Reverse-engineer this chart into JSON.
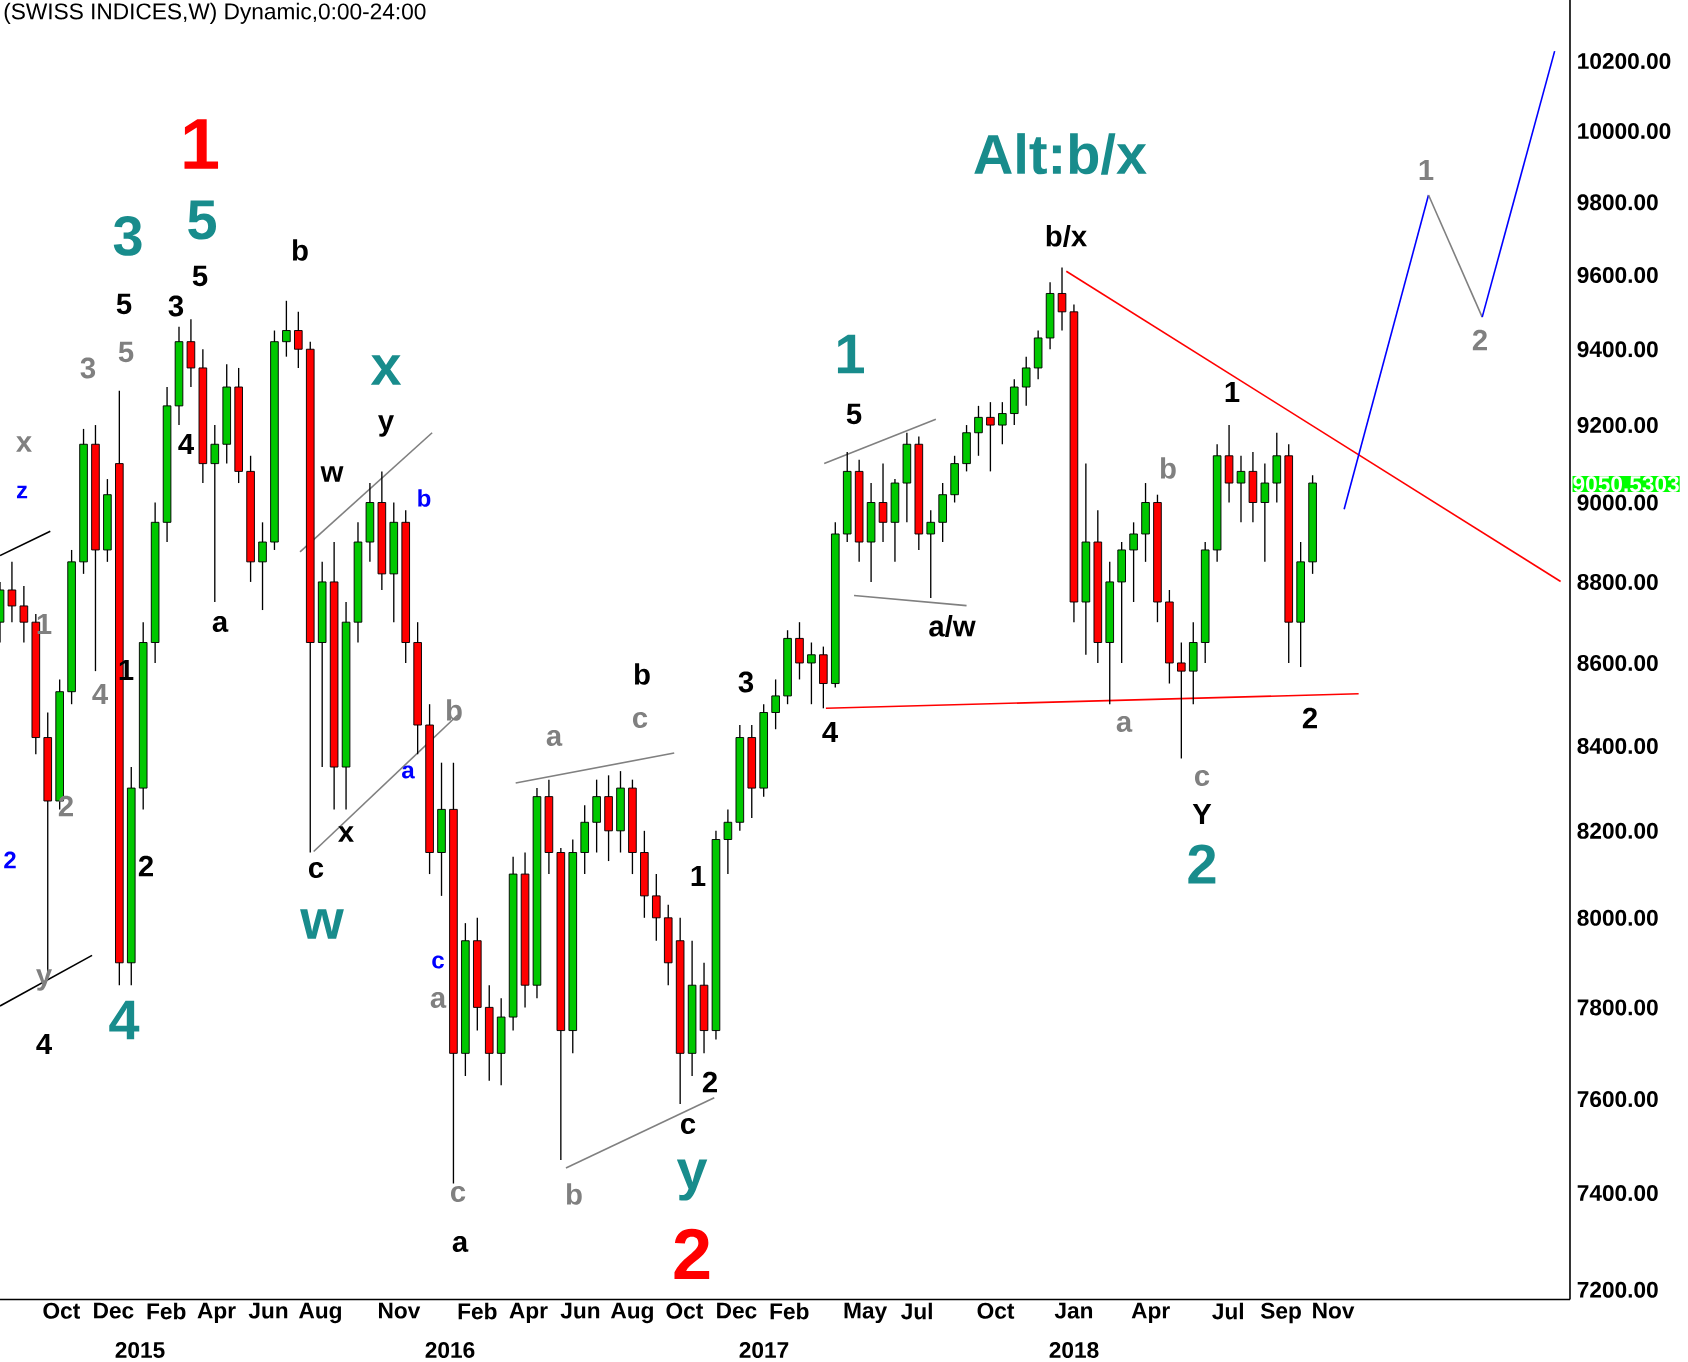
{
  "chart_data": {
    "type": "candlestick",
    "title": "(SWISS INDICES,W) Dynamic,0:00-24:00",
    "log": true,
    "xlim": [
      "2014-07-21",
      "2019-08-06"
    ],
    "ylim": [
      7180,
      10380
    ],
    "xticks": [
      {
        "value": "2014-10",
        "label": "Oct"
      },
      {
        "value": "2014-12",
        "label": "Dec"
      },
      {
        "value": "2015-02",
        "label": "Feb"
      },
      {
        "value": "2015-04",
        "label": "Apr"
      },
      {
        "value": "2015-06",
        "label": "Jun"
      },
      {
        "value": "2015-08",
        "label": "Aug"
      },
      {
        "value": "2015-11",
        "label": "Nov"
      },
      {
        "value": "2016-02",
        "label": "Feb"
      },
      {
        "value": "2016-04",
        "label": "Apr"
      },
      {
        "value": "2016-06",
        "label": "Jun"
      },
      {
        "value": "2016-08",
        "label": "Aug"
      },
      {
        "value": "2016-10",
        "label": "Oct"
      },
      {
        "value": "2016-12",
        "label": "Dec"
      },
      {
        "value": "2017-02",
        "label": "Feb"
      },
      {
        "value": "2017-05",
        "label": "May"
      },
      {
        "value": "2017-07",
        "label": "Jul"
      },
      {
        "value": "2017-10",
        "label": "Oct"
      },
      {
        "value": "2018-01",
        "label": "Jan"
      },
      {
        "value": "2018-04",
        "label": "Apr"
      },
      {
        "value": "2018-07",
        "label": "Jul"
      },
      {
        "value": "2018-09",
        "label": "Sep"
      },
      {
        "value": "2018-11",
        "label": "Nov"
      }
    ],
    "yticks": [
      {
        "value": 7200,
        "label": "7200.00"
      },
      {
        "value": 7400,
        "label": "7400.00"
      },
      {
        "value": 7600,
        "label": "7600.00"
      },
      {
        "value": 7800,
        "label": "7800.00"
      },
      {
        "value": 8000,
        "label": "8000.00"
      },
      {
        "value": 8200,
        "label": "8200.00"
      },
      {
        "value": 8400,
        "label": "8400.00"
      },
      {
        "value": 8600,
        "label": "8600.00"
      },
      {
        "value": 8800,
        "label": "8800.00"
      },
      {
        "value": 9000,
        "label": "9000.00"
      },
      {
        "value": 9200,
        "label": "9200.00"
      },
      {
        "value": 9400,
        "label": "9400.00"
      },
      {
        "value": 9600,
        "label": "9600.00"
      },
      {
        "value": 9800,
        "label": "9800.00"
      },
      {
        "value": 10000,
        "label": "10000.00"
      },
      {
        "value": 10200,
        "label": "10200.00"
      }
    ],
    "x": [
      "2014-07-21",
      "2014-08-04",
      "2014-08-18",
      "2014-09-01",
      "2014-09-15",
      "2014-09-29",
      "2014-10-13",
      "2014-10-27",
      "2014-11-10",
      "2014-11-24",
      "2014-12-08",
      "2014-12-22",
      "2015-01-05",
      "2015-01-19",
      "2015-02-02",
      "2015-02-16",
      "2015-03-02",
      "2015-03-16",
      "2015-03-30",
      "2015-04-13",
      "2015-04-27",
      "2015-05-11",
      "2015-05-25",
      "2015-06-08",
      "2015-06-22",
      "2015-07-06",
      "2015-07-20",
      "2015-08-03",
      "2015-08-17",
      "2015-08-31",
      "2015-09-14",
      "2015-09-28",
      "2015-10-12",
      "2015-10-26",
      "2015-11-09",
      "2015-11-23",
      "2015-12-07",
      "2015-12-21",
      "2016-01-04",
      "2016-01-18",
      "2016-02-01",
      "2016-02-15",
      "2016-02-29",
      "2016-03-14",
      "2016-03-28",
      "2016-04-11",
      "2016-04-25",
      "2016-05-09",
      "2016-05-23",
      "2016-06-06",
      "2016-06-20",
      "2016-07-04",
      "2016-07-18",
      "2016-08-01",
      "2016-08-15",
      "2016-08-29",
      "2016-09-12",
      "2016-09-26",
      "2016-10-10",
      "2016-10-24",
      "2016-11-07",
      "2016-11-21",
      "2016-12-05",
      "2016-12-19",
      "2017-01-02",
      "2017-01-16",
      "2017-01-30",
      "2017-02-13",
      "2017-02-27",
      "2017-03-13",
      "2017-03-27",
      "2017-04-10",
      "2017-04-24",
      "2017-05-08",
      "2017-05-22",
      "2017-06-05",
      "2017-06-19",
      "2017-07-03",
      "2017-07-17",
      "2017-07-31",
      "2017-08-14",
      "2017-08-28",
      "2017-09-11",
      "2017-09-25",
      "2017-10-09",
      "2017-10-23",
      "2017-11-06",
      "2017-11-20",
      "2017-12-04",
      "2017-12-18",
      "2018-01-01",
      "2018-01-15",
      "2018-01-29",
      "2018-02-12",
      "2018-02-26",
      "2018-03-12",
      "2018-03-26",
      "2018-04-09",
      "2018-04-23",
      "2018-05-07",
      "2018-05-21",
      "2018-06-04",
      "2018-06-18",
      "2018-07-02",
      "2018-07-16",
      "2018-07-30",
      "2018-08-13",
      "2018-08-27",
      "2018-09-10",
      "2018-09-24",
      "2018-10-08"
    ],
    "ohlc": [
      [
        8700,
        8800,
        8650,
        8780
      ],
      [
        8780,
        8850,
        8700,
        8740
      ],
      [
        8740,
        8790,
        8650,
        8700
      ],
      [
        8700,
        8720,
        8380,
        8420
      ],
      [
        8420,
        8480,
        7870,
        8270
      ],
      [
        8270,
        8560,
        8250,
        8530
      ],
      [
        8530,
        8880,
        8500,
        8850
      ],
      [
        8850,
        9190,
        8820,
        9150
      ],
      [
        9150,
        9200,
        8580,
        8880
      ],
      [
        8880,
        9060,
        8850,
        9020
      ],
      [
        9100,
        9290,
        7850,
        7900
      ],
      [
        7900,
        8350,
        7850,
        8300
      ],
      [
        8300,
        8700,
        8250,
        8650
      ],
      [
        8650,
        9000,
        8600,
        8950
      ],
      [
        8950,
        9300,
        8900,
        9250
      ],
      [
        9250,
        9460,
        9200,
        9420
      ],
      [
        9420,
        9480,
        9300,
        9350
      ],
      [
        9350,
        9400,
        9050,
        9100
      ],
      [
        9100,
        9200,
        8750,
        9150
      ],
      [
        9150,
        9360,
        9100,
        9300
      ],
      [
        9300,
        9350,
        9050,
        9080
      ],
      [
        9080,
        9120,
        8800,
        8850
      ],
      [
        8850,
        8950,
        8730,
        8900
      ],
      [
        8900,
        9450,
        8880,
        9420
      ],
      [
        9420,
        9530,
        9380,
        9450
      ],
      [
        9450,
        9500,
        9350,
        9400
      ],
      [
        9400,
        9420,
        8150,
        8650
      ],
      [
        8650,
        8850,
        8350,
        8800
      ],
      [
        8800,
        8900,
        8250,
        8350
      ],
      [
        8350,
        8750,
        8250,
        8700
      ],
      [
        8700,
        8950,
        8650,
        8900
      ],
      [
        8900,
        9050,
        8850,
        9000
      ],
      [
        9000,
        9080,
        8780,
        8820
      ],
      [
        8820,
        9000,
        8700,
        8950
      ],
      [
        8950,
        8980,
        8600,
        8650
      ],
      [
        8650,
        8700,
        8380,
        8450
      ],
      [
        8450,
        8500,
        8100,
        8150
      ],
      [
        8150,
        8360,
        8050,
        8250
      ],
      [
        8250,
        8360,
        7420,
        7700
      ],
      [
        7700,
        7990,
        7650,
        7950
      ],
      [
        7950,
        8000,
        7750,
        7800
      ],
      [
        7800,
        7850,
        7640,
        7700
      ],
      [
        7700,
        7820,
        7630,
        7780
      ],
      [
        7780,
        8140,
        7750,
        8100
      ],
      [
        8100,
        8150,
        7800,
        7850
      ],
      [
        7850,
        8300,
        7820,
        8280
      ],
      [
        8280,
        8320,
        8100,
        8150
      ],
      [
        8150,
        8160,
        7470,
        7750
      ],
      [
        7750,
        8180,
        7700,
        8150
      ],
      [
        8150,
        8260,
        8100,
        8220
      ],
      [
        8220,
        8320,
        8150,
        8280
      ],
      [
        8280,
        8330,
        8130,
        8200
      ],
      [
        8200,
        8340,
        8150,
        8300
      ],
      [
        8300,
        8320,
        8100,
        8150
      ],
      [
        8150,
        8200,
        8000,
        8050
      ],
      [
        8050,
        8100,
        7950,
        8000
      ],
      [
        8000,
        8030,
        7850,
        7900
      ],
      [
        7950,
        8000,
        7590,
        7700
      ],
      [
        7700,
        7950,
        7650,
        7850
      ],
      [
        7850,
        7900,
        7700,
        7750
      ],
      [
        7750,
        8200,
        7730,
        8180
      ],
      [
        8180,
        8250,
        8100,
        8220
      ],
      [
        8220,
        8450,
        8200,
        8420
      ],
      [
        8420,
        8450,
        8230,
        8300
      ],
      [
        8300,
        8500,
        8280,
        8480
      ],
      [
        8480,
        8560,
        8440,
        8520
      ],
      [
        8520,
        8680,
        8500,
        8660
      ],
      [
        8660,
        8700,
        8560,
        8600
      ],
      [
        8600,
        8650,
        8500,
        8620
      ],
      [
        8620,
        8640,
        8490,
        8550
      ],
      [
        8550,
        8950,
        8540,
        8920
      ],
      [
        8920,
        9130,
        8900,
        9080
      ],
      [
        9080,
        9110,
        8850,
        8900
      ],
      [
        8900,
        9050,
        8800,
        9000
      ],
      [
        9000,
        9100,
        8900,
        8950
      ],
      [
        8950,
        9060,
        8850,
        9050
      ],
      [
        9050,
        9180,
        8950,
        9150
      ],
      [
        9150,
        9170,
        8880,
        8920
      ],
      [
        8920,
        8980,
        8760,
        8950
      ],
      [
        8950,
        9050,
        8900,
        9020
      ],
      [
        9020,
        9120,
        9000,
        9100
      ],
      [
        9100,
        9200,
        9080,
        9180
      ],
      [
        9180,
        9250,
        9120,
        9220
      ],
      [
        9220,
        9260,
        9080,
        9200
      ],
      [
        9200,
        9260,
        9150,
        9230
      ],
      [
        9230,
        9320,
        9200,
        9300
      ],
      [
        9300,
        9380,
        9250,
        9350
      ],
      [
        9350,
        9450,
        9320,
        9430
      ],
      [
        9430,
        9580,
        9400,
        9550
      ],
      [
        9550,
        9620,
        9450,
        9500
      ],
      [
        9500,
        9520,
        8700,
        8750
      ],
      [
        8750,
        9100,
        8620,
        8900
      ],
      [
        8900,
        8980,
        8600,
        8650
      ],
      [
        8650,
        8850,
        8500,
        8800
      ],
      [
        8800,
        8900,
        8600,
        8880
      ],
      [
        8880,
        8950,
        8750,
        8920
      ],
      [
        8920,
        9050,
        8850,
        9000
      ],
      [
        9000,
        9020,
        8700,
        8750
      ],
      [
        8750,
        8780,
        8550,
        8600
      ],
      [
        8600,
        8650,
        8370,
        8580
      ],
      [
        8580,
        8700,
        8500,
        8650
      ],
      [
        8650,
        8900,
        8600,
        8880
      ],
      [
        8880,
        9150,
        8850,
        9120
      ],
      [
        9120,
        9200,
        9000,
        9050
      ],
      [
        9050,
        9120,
        8950,
        9080
      ],
      [
        9080,
        9130,
        8950,
        9000
      ],
      [
        9000,
        9100,
        8850,
        9050
      ],
      [
        9050,
        9180,
        9000,
        9120
      ],
      [
        9120,
        9150,
        8600,
        8700
      ],
      [
        8700,
        8900,
        8590,
        8850
      ],
      [
        8850,
        9070,
        8820,
        9050
      ]
    ],
    "series": [
      {
        "type": "line",
        "color": "#ff0000",
        "x": [
          "2017-12-23",
          "2019-07-26"
        ],
        "values": [
          9610,
          8801
        ]
      },
      {
        "type": "line",
        "color": "#ff0000",
        "x": [
          "2017-03-16",
          "2018-12-01"
        ],
        "values": [
          8490,
          8525
        ]
      },
      {
        "type": "line",
        "color": "#0000ff",
        "x": [
          "2018-11-14",
          "2019-02-21"
        ],
        "values": [
          8983,
          9820
        ]
      },
      {
        "type": "line",
        "color": "#808080",
        "x": [
          "2019-02-21",
          "2019-04-25"
        ],
        "values": [
          9820,
          9486
        ]
      },
      {
        "type": "line",
        "color": "#0000ff",
        "x": [
          "2019-04-25",
          "2019-07-19"
        ],
        "values": [
          9486,
          10229
        ]
      },
      {
        "type": "line",
        "color": "#000000",
        "x": [
          "2014-07-21",
          "2014-11-06"
        ],
        "values": [
          7804,
          7917
        ]
      },
      {
        "type": "line",
        "color": "#000000",
        "x": [
          "2014-07-21",
          "2014-09-18"
        ],
        "values": [
          8866,
          8927
        ]
      },
      {
        "type": "line",
        "color": "#808080",
        "x": [
          "2015-07-08",
          "2015-12-10"
        ],
        "values": [
          8875,
          9180
        ]
      },
      {
        "type": "line",
        "color": "#808080",
        "x": [
          "2015-07-24",
          "2016-01-09"
        ],
        "values": [
          8152,
          8474
        ]
      },
      {
        "type": "line",
        "color": "#808080",
        "x": [
          "2016-03-17",
          "2016-09-19"
        ],
        "values": [
          8312,
          8383
        ]
      },
      {
        "type": "line",
        "color": "#808080",
        "x": [
          "2016-05-15",
          "2016-11-05"
        ],
        "values": [
          7453,
          7603
        ]
      },
      {
        "type": "line",
        "color": "#808080",
        "x": [
          "2017-03-14",
          "2017-07-23"
        ],
        "values": [
          9100,
          9215
        ]
      },
      {
        "type": "line",
        "color": "#808080",
        "x": [
          "2017-04-18",
          "2017-08-28"
        ],
        "values": [
          8766,
          8741
        ]
      }
    ],
    "annotations": [
      "9050.5303",
      "x",
      "z",
      "2",
      "1",
      "4",
      "2",
      "y",
      "4",
      "4",
      "2",
      "1",
      "5",
      "3",
      "5",
      "3",
      "3",
      "5",
      "5",
      "1",
      "4",
      "a",
      "b",
      "x",
      "y",
      "w",
      "b",
      "a",
      "b",
      "c",
      "x",
      "w",
      "c",
      "a",
      "c",
      "a",
      "a",
      "b",
      "c",
      "b",
      "1",
      "2",
      "c",
      "y",
      "2",
      "3",
      "4",
      "1",
      "5",
      "a/w",
      "b/x",
      "Alt:b/x",
      "b",
      "1",
      "a",
      "c",
      "Y",
      "2",
      "2",
      "1",
      "2",
      "2015",
      "2016",
      "2017",
      "2018"
    ]
  }
}
